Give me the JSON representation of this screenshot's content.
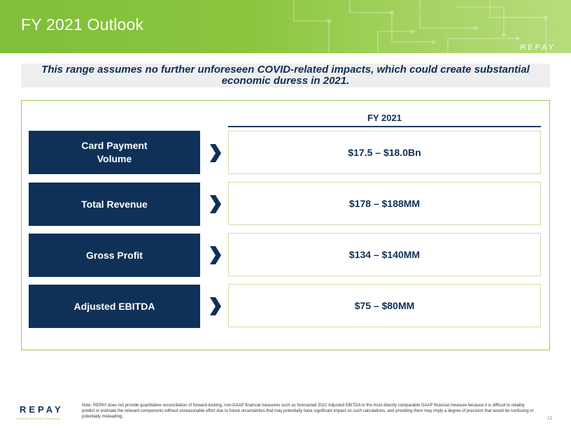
{
  "header": {
    "title": "FY 2021 Outlook",
    "logo_text": "REPAY"
  },
  "banner": {
    "text": "This range assumes no further unforeseen COVID-related impacts, which could create substantial economic duress in 2021."
  },
  "table": {
    "column_header": "FY 2021",
    "rows": [
      {
        "label": "Card Payment\nVolume",
        "value": "$17.5 – $18.0Bn"
      },
      {
        "label": "Total Revenue",
        "value": "$178 – $188MM"
      },
      {
        "label": "Gross Profit",
        "value": "$134 – $140MM"
      },
      {
        "label": "Adjusted EBITDA",
        "value": "$75 – $80MM"
      }
    ]
  },
  "footer": {
    "logo_text": "REPAY",
    "logo_tagline": "Realtime Electronic Payments",
    "note": "Note: REPAY does not provide quantitative reconciliation of forward-looking, non-GAAP financial measures such as forecasted 2021 Adjusted EBITDA to the most directly comparable GAAP financial measure because it is difficult to reliably predict or estimate the relevant components without unreasonable effort due to future uncertainties that may potentially have significant impact on such calculations, and providing them may imply a degree of precision that would be confusing or potentially misleading.",
    "page_number": "11"
  },
  "colors": {
    "header_green": "#8cc63f",
    "navy": "#0f3158",
    "panel_border": "#9bc95a",
    "value_border": "#c9e3a6"
  }
}
